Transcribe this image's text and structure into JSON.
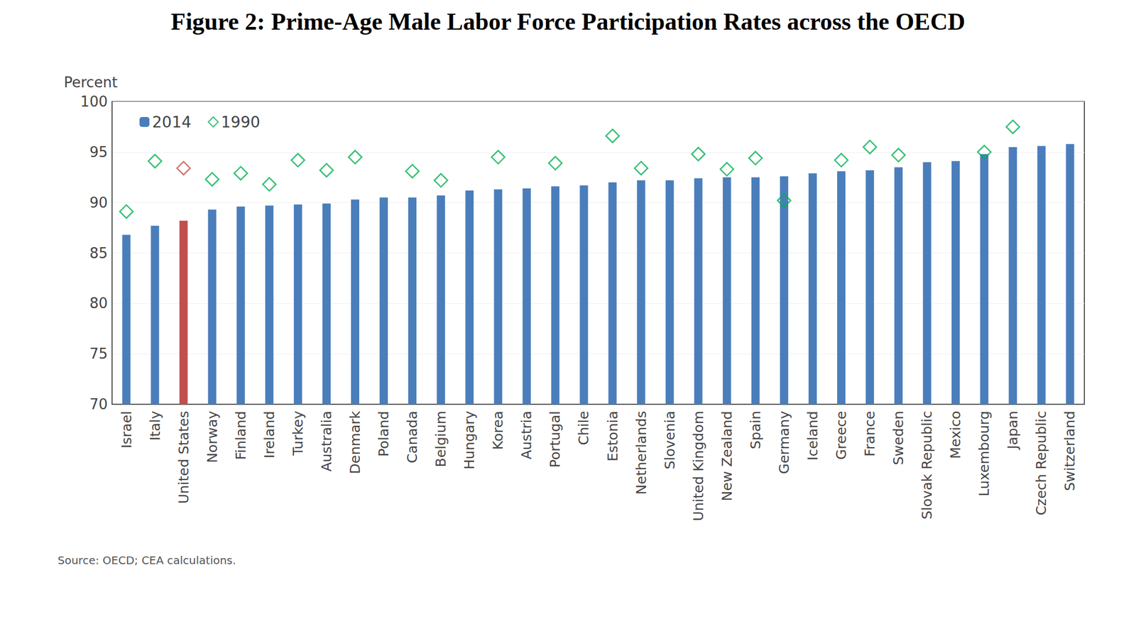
{
  "chart_data": {
    "type": "bar",
    "title": "Figure 2: Prime-Age Male Labor Force Participation Rates across the OECD",
    "y_label": "Percent",
    "source": "Source: OECD; CEA calculations.",
    "categories": [
      "Israel",
      "Italy",
      "United States",
      "Norway",
      "Finland",
      "Ireland",
      "Turkey",
      "Australia",
      "Denmark",
      "Poland",
      "Canada",
      "Belgium",
      "Hungary",
      "Korea",
      "Austria",
      "Portugal",
      "Chile",
      "Estonia",
      "Netherlands",
      "Slovenia",
      "United Kingdom",
      "New Zealand",
      "Spain",
      "Germany",
      "Iceland",
      "Greece",
      "France",
      "Sweden",
      "Slovak Republic",
      "Mexico",
      "Luxembourg",
      "Japan",
      "Czech Republic",
      "Switzerland"
    ],
    "series": [
      {
        "name": "2014",
        "type": "bar",
        "color": "#4a7ebb",
        "colors": [
          "#4a7ebb",
          "#4a7ebb",
          "#c0504d",
          "#4a7ebb",
          "#4a7ebb",
          "#4a7ebb",
          "#4a7ebb",
          "#4a7ebb",
          "#4a7ebb",
          "#4a7ebb",
          "#4a7ebb",
          "#4a7ebb",
          "#4a7ebb",
          "#4a7ebb",
          "#4a7ebb",
          "#4a7ebb",
          "#4a7ebb",
          "#4a7ebb",
          "#4a7ebb",
          "#4a7ebb",
          "#4a7ebb",
          "#4a7ebb",
          "#4a7ebb",
          "#4a7ebb",
          "#4a7ebb",
          "#4a7ebb",
          "#4a7ebb",
          "#4a7ebb",
          "#4a7ebb",
          "#4a7ebb",
          "#4a7ebb",
          "#4a7ebb",
          "#4a7ebb",
          "#4a7ebb"
        ],
        "values": [
          86.8,
          87.7,
          88.2,
          89.3,
          89.6,
          89.7,
          89.8,
          89.9,
          90.3,
          90.5,
          90.5,
          90.7,
          91.2,
          91.3,
          91.4,
          91.6,
          91.7,
          92.0,
          92.2,
          92.2,
          92.4,
          92.5,
          92.5,
          92.6,
          92.9,
          93.1,
          93.2,
          93.5,
          94.0,
          94.1,
          94.8,
          95.5,
          95.6,
          95.8
        ]
      },
      {
        "name": "1990",
        "type": "scatter",
        "marker": "diamond",
        "color": "#00b050",
        "colors": [
          "#00b050",
          "#00b050",
          "#c0504d",
          "#00b050",
          "#00b050",
          "#00b050",
          "#00b050",
          "#00b050",
          "#00b050",
          "#00b050",
          "#00b050",
          "#00b050",
          "#00b050",
          "#00b050",
          "#00b050",
          "#00b050",
          "#00b050",
          "#00b050",
          "#00b050",
          "#00b050",
          "#00b050",
          "#00b050",
          "#00b050",
          "#00b050",
          "#00b050",
          "#00b050",
          "#00b050",
          "#00b050",
          "#00b050",
          "#00b050",
          "#00b050",
          "#00b050",
          "#00b050",
          "#00b050"
        ],
        "values": [
          89.1,
          94.1,
          93.4,
          92.3,
          92.9,
          91.8,
          94.2,
          93.2,
          94.5,
          null,
          93.1,
          92.2,
          null,
          94.5,
          null,
          93.9,
          null,
          96.6,
          93.4,
          null,
          94.8,
          93.3,
          94.4,
          90.2,
          null,
          94.2,
          95.5,
          94.7,
          null,
          null,
          95.0,
          97.5,
          null,
          null
        ]
      }
    ],
    "ylim": [
      70,
      100
    ],
    "yticks": [
      70,
      75,
      80,
      85,
      90,
      95,
      100
    ],
    "grid": true,
    "legend": "upper left"
  }
}
